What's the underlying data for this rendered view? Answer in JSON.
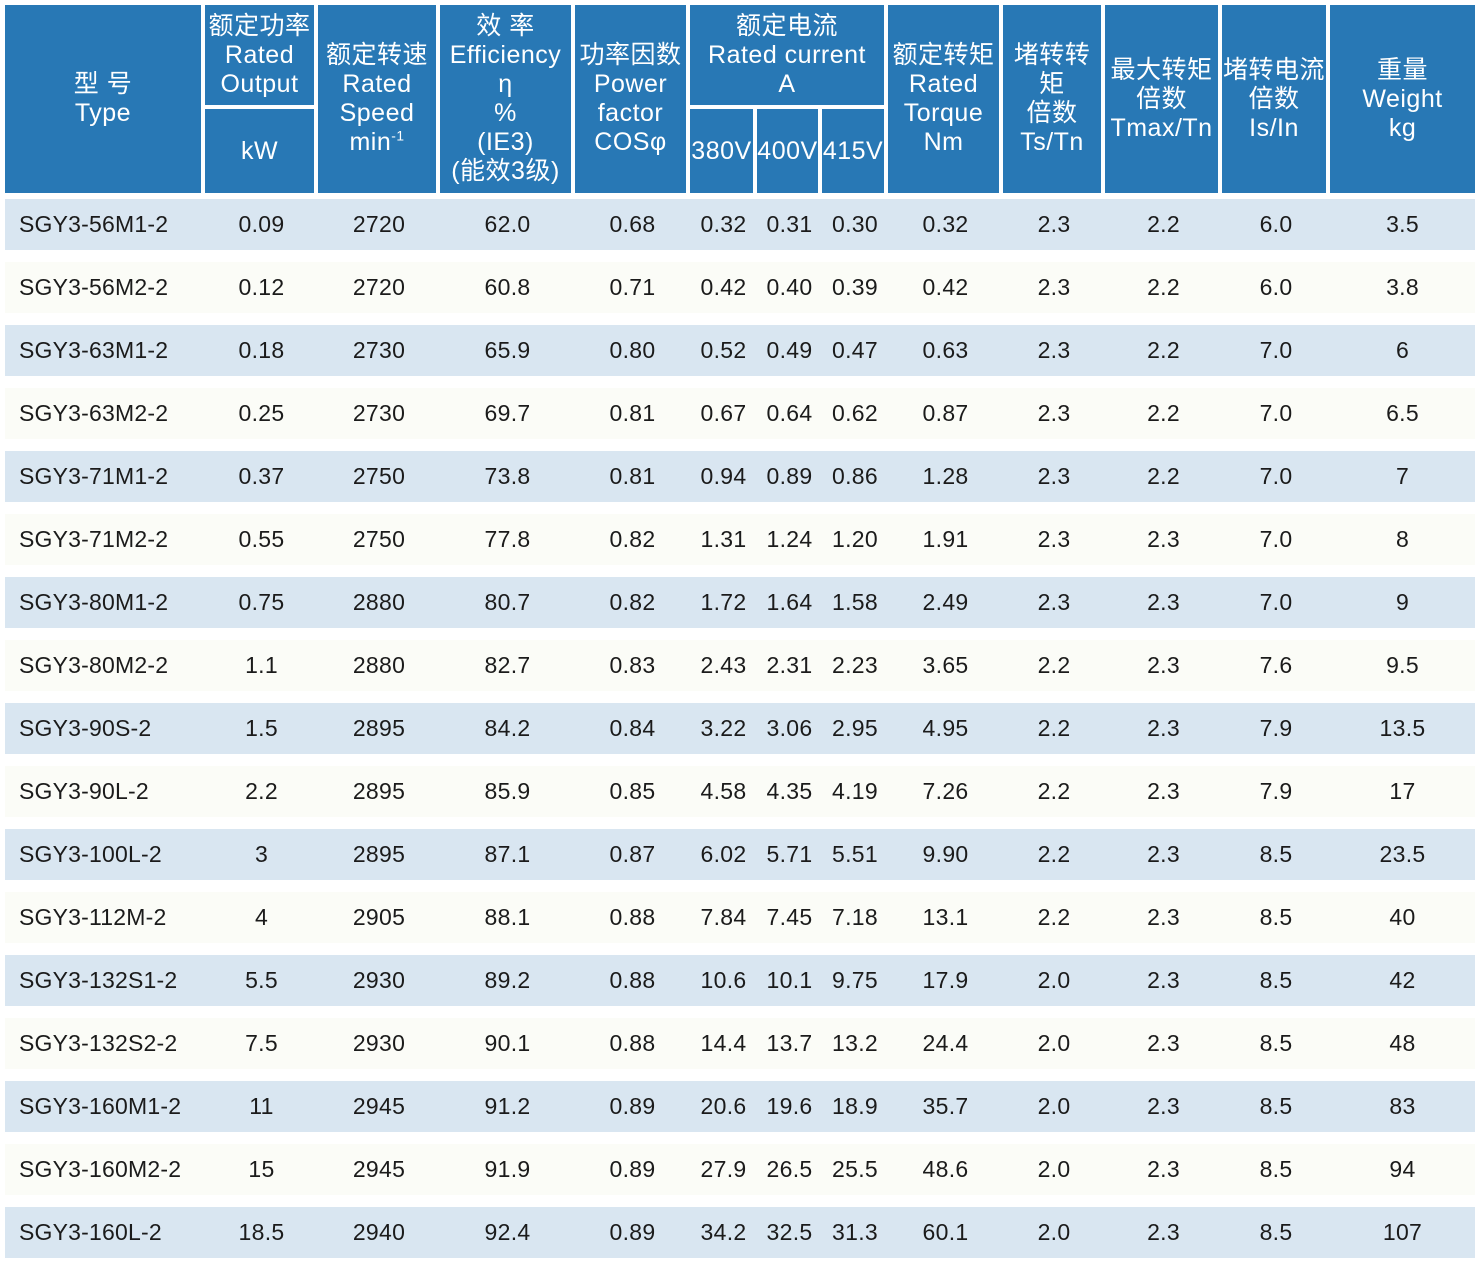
{
  "colors": {
    "header_bg": "#2878b5",
    "header_text": "#ffffff",
    "row_stripe_blue": "#d9e6f1",
    "row_stripe_white": "#fbfcf7",
    "grid_lines": "#ffffff",
    "data_text": "#1b1b1b"
  },
  "table": {
    "header": {
      "type": {
        "zh": "型 号",
        "en": "Type"
      },
      "rated_output": {
        "zh": "额定功率",
        "en_1": "Rated",
        "en_2": "Output",
        "unit": "kW"
      },
      "rated_speed": {
        "zh": "额定转速",
        "en_1": "Rated",
        "en_2": "Speed",
        "unit_base": "min",
        "unit_sup": "-1"
      },
      "efficiency": {
        "zh": "效 率",
        "en": "Efficiency",
        "symbol": "η",
        "unit": "%",
        "note_1": "(IE3)",
        "note_2": "(能效3级)"
      },
      "power_factor": {
        "zh": "功率因数",
        "en_1": "Power",
        "en_2": "factor",
        "symbol": "COSφ"
      },
      "rated_current": {
        "zh": "额定电流",
        "en": "Rated current",
        "unit": "A",
        "sub": [
          "380V",
          "400V",
          "415V"
        ]
      },
      "rated_torque": {
        "zh": "额定转矩",
        "en_1": "Rated",
        "en_2": "Torque",
        "unit": "Nm"
      },
      "locked_rotor_torque": {
        "zh_1": "堵转转矩",
        "zh_2": "倍数",
        "symbol": "Ts/Tn"
      },
      "max_torque": {
        "zh_1": "最大转矩",
        "zh_2": "倍数",
        "symbol": "Tmax/Tn"
      },
      "locked_rotor_current": {
        "zh_1": "堵转电流",
        "zh_2": "倍数",
        "symbol": "Is/In"
      },
      "weight": {
        "zh": "重量",
        "en": "Weight",
        "unit": "kg"
      }
    },
    "columns": [
      "type",
      "rated_output_kw",
      "rated_speed_min-1",
      "efficiency_pct",
      "power_factor_cos",
      "current_380v_a",
      "current_400v_a",
      "current_415v_a",
      "rated_torque_nm",
      "ts_tn",
      "tmax_tn",
      "is_in",
      "weight_kg"
    ],
    "rows": [
      [
        "SGY3-56M1-2",
        "0.09",
        "2720",
        "62.0",
        "0.68",
        "0.32",
        "0.31",
        "0.30",
        "0.32",
        "2.3",
        "2.2",
        "6.0",
        "3.5"
      ],
      [
        "SGY3-56M2-2",
        "0.12",
        "2720",
        "60.8",
        "0.71",
        "0.42",
        "0.40",
        "0.39",
        "0.42",
        "2.3",
        "2.2",
        "6.0",
        "3.8"
      ],
      [
        "SGY3-63M1-2",
        "0.18",
        "2730",
        "65.9",
        "0.80",
        "0.52",
        "0.49",
        "0.47",
        "0.63",
        "2.3",
        "2.2",
        "7.0",
        "6"
      ],
      [
        "SGY3-63M2-2",
        "0.25",
        "2730",
        "69.7",
        "0.81",
        "0.67",
        "0.64",
        "0.62",
        "0.87",
        "2.3",
        "2.2",
        "7.0",
        "6.5"
      ],
      [
        "SGY3-71M1-2",
        "0.37",
        "2750",
        "73.8",
        "0.81",
        "0.94",
        "0.89",
        "0.86",
        "1.28",
        "2.3",
        "2.2",
        "7.0",
        "7"
      ],
      [
        "SGY3-71M2-2",
        "0.55",
        "2750",
        "77.8",
        "0.82",
        "1.31",
        "1.24",
        "1.20",
        "1.91",
        "2.3",
        "2.3",
        "7.0",
        "8"
      ],
      [
        "SGY3-80M1-2",
        "0.75",
        "2880",
        "80.7",
        "0.82",
        "1.72",
        "1.64",
        "1.58",
        "2.49",
        "2.3",
        "2.3",
        "7.0",
        "9"
      ],
      [
        "SGY3-80M2-2",
        "1.1",
        "2880",
        "82.7",
        "0.83",
        "2.43",
        "2.31",
        "2.23",
        "3.65",
        "2.2",
        "2.3",
        "7.6",
        "9.5"
      ],
      [
        "SGY3-90S-2",
        "1.5",
        "2895",
        "84.2",
        "0.84",
        "3.22",
        "3.06",
        "2.95",
        "4.95",
        "2.2",
        "2.3",
        "7.9",
        "13.5"
      ],
      [
        "SGY3-90L-2",
        "2.2",
        "2895",
        "85.9",
        "0.85",
        "4.58",
        "4.35",
        "4.19",
        "7.26",
        "2.2",
        "2.3",
        "7.9",
        "17"
      ],
      [
        "SGY3-100L-2",
        "3",
        "2895",
        "87.1",
        "0.87",
        "6.02",
        "5.71",
        "5.51",
        "9.90",
        "2.2",
        "2.3",
        "8.5",
        "23.5"
      ],
      [
        "SGY3-112M-2",
        "4",
        "2905",
        "88.1",
        "0.88",
        "7.84",
        "7.45",
        "7.18",
        "13.1",
        "2.2",
        "2.3",
        "8.5",
        "40"
      ],
      [
        "SGY3-132S1-2",
        "5.5",
        "2930",
        "89.2",
        "0.88",
        "10.6",
        "10.1",
        "9.75",
        "17.9",
        "2.0",
        "2.3",
        "8.5",
        "42"
      ],
      [
        "SGY3-132S2-2",
        "7.5",
        "2930",
        "90.1",
        "0.88",
        "14.4",
        "13.7",
        "13.2",
        "24.4",
        "2.0",
        "2.3",
        "8.5",
        "48"
      ],
      [
        "SGY3-160M1-2",
        "11",
        "2945",
        "91.2",
        "0.89",
        "20.6",
        "19.6",
        "18.9",
        "35.7",
        "2.0",
        "2.3",
        "8.5",
        "83"
      ],
      [
        "SGY3-160M2-2",
        "15",
        "2945",
        "91.9",
        "0.89",
        "27.9",
        "26.5",
        "25.5",
        "48.6",
        "2.0",
        "2.3",
        "8.5",
        "94"
      ],
      [
        "SGY3-160L-2",
        "18.5",
        "2940",
        "92.4",
        "0.89",
        "34.2",
        "32.5",
        "31.3",
        "60.1",
        "2.0",
        "2.3",
        "8.5",
        "107"
      ]
    ]
  }
}
